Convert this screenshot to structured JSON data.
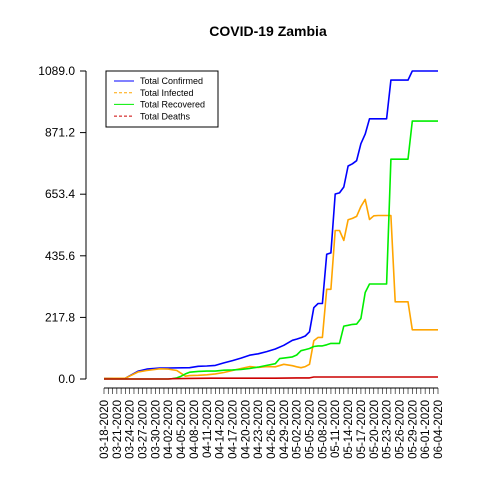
{
  "chart_data": {
    "type": "line",
    "title": "COVID-19 Zambia",
    "xlabel": "",
    "ylabel": "",
    "ylim": [
      0,
      1089
    ],
    "y_ticks": [
      "0.0",
      "217.8",
      "435.6",
      "653.4",
      "871.2",
      "1089.0"
    ],
    "x_tick_labels": [
      "03-18-2020",
      "03-21-2020",
      "03-24-2020",
      "03-27-2020",
      "03-30-2020",
      "04-02-2020",
      "04-05-2020",
      "04-08-2020",
      "04-11-2020",
      "04-14-2020",
      "04-17-2020",
      "04-20-2020",
      "04-23-2020",
      "04-26-2020",
      "04-29-2020",
      "05-02-2020",
      "05-05-2020",
      "05-08-2020",
      "05-11-2020",
      "05-14-2020",
      "05-17-2020",
      "05-20-2020",
      "05-23-2020",
      "05-26-2020",
      "05-29-2020",
      "06-01-2020",
      "06-04-2020"
    ],
    "legend_position": "top-left",
    "grid": false,
    "series": [
      {
        "name": "Total Confirmed",
        "color": "#0000ff",
        "style": "solid",
        "points": [
          [
            0,
            2
          ],
          [
            5,
            3
          ],
          [
            8,
            28
          ],
          [
            10,
            35
          ],
          [
            13,
            39
          ],
          [
            15,
            39
          ],
          [
            20,
            40
          ],
          [
            22,
            45
          ],
          [
            24,
            46
          ],
          [
            26,
            48
          ],
          [
            28,
            57
          ],
          [
            30,
            65
          ],
          [
            32,
            74
          ],
          [
            34,
            84
          ],
          [
            36,
            89
          ],
          [
            38,
            97
          ],
          [
            40,
            106
          ],
          [
            42,
            119
          ],
          [
            44,
            137
          ],
          [
            45,
            141
          ],
          [
            46,
            146
          ],
          [
            47,
            152
          ],
          [
            48,
            167
          ],
          [
            49,
            252
          ],
          [
            50,
            267
          ],
          [
            51,
            267
          ],
          [
            52,
            441
          ],
          [
            53,
            446
          ],
          [
            54,
            654
          ],
          [
            55,
            658
          ],
          [
            56,
            679
          ],
          [
            57,
            753
          ],
          [
            58,
            761
          ],
          [
            59,
            772
          ],
          [
            60,
            832
          ],
          [
            61,
            866
          ],
          [
            62,
            920
          ],
          [
            63,
            920
          ],
          [
            64,
            920
          ],
          [
            65,
            920
          ],
          [
            66,
            920
          ],
          [
            67,
            1057
          ],
          [
            68,
            1057
          ],
          [
            69,
            1057
          ],
          [
            70,
            1057
          ],
          [
            71,
            1057
          ],
          [
            72,
            1089
          ],
          [
            73,
            1089
          ],
          [
            74,
            1089
          ],
          [
            75,
            1089
          ],
          [
            76,
            1089
          ],
          [
            77,
            1089
          ],
          [
            78,
            1089
          ]
        ]
      },
      {
        "name": "Total Infected",
        "color": "#ffa500",
        "style": "solid",
        "points": [
          [
            0,
            2
          ],
          [
            5,
            3
          ],
          [
            8,
            25
          ],
          [
            10,
            30
          ],
          [
            13,
            36
          ],
          [
            15,
            35
          ],
          [
            17,
            30
          ],
          [
            18,
            20
          ],
          [
            19,
            10
          ],
          [
            20,
            12
          ],
          [
            22,
            13
          ],
          [
            24,
            15
          ],
          [
            26,
            18
          ],
          [
            28,
            23
          ],
          [
            30,
            30
          ],
          [
            32,
            37
          ],
          [
            34,
            44
          ],
          [
            36,
            41
          ],
          [
            38,
            44
          ],
          [
            40,
            43
          ],
          [
            42,
            52
          ],
          [
            44,
            47
          ],
          [
            45,
            43
          ],
          [
            46,
            40
          ],
          [
            47,
            44
          ],
          [
            48,
            52
          ],
          [
            49,
            135
          ],
          [
            50,
            147
          ],
          [
            51,
            147
          ],
          [
            52,
            317
          ],
          [
            53,
            317
          ],
          [
            54,
            525
          ],
          [
            55,
            525
          ],
          [
            56,
            490
          ],
          [
            57,
            563
          ],
          [
            58,
            568
          ],
          [
            59,
            575
          ],
          [
            60,
            610
          ],
          [
            61,
            635
          ],
          [
            62,
            564
          ],
          [
            63,
            577
          ],
          [
            64,
            578
          ],
          [
            65,
            578
          ],
          [
            66,
            578
          ],
          [
            67,
            578
          ],
          [
            68,
            273
          ],
          [
            69,
            273
          ],
          [
            70,
            273
          ],
          [
            71,
            273
          ],
          [
            72,
            174
          ],
          [
            73,
            174
          ],
          [
            74,
            174
          ],
          [
            75,
            174
          ],
          [
            76,
            174
          ],
          [
            77,
            174
          ],
          [
            78,
            174
          ]
        ]
      },
      {
        "name": "Total Recovered",
        "color": "#00ee00",
        "style": "solid",
        "points": [
          [
            0,
            0
          ],
          [
            5,
            0
          ],
          [
            10,
            0
          ],
          [
            15,
            0
          ],
          [
            16,
            1
          ],
          [
            17,
            4
          ],
          [
            18,
            10
          ],
          [
            19,
            18
          ],
          [
            20,
            24
          ],
          [
            22,
            27
          ],
          [
            24,
            28
          ],
          [
            26,
            28
          ],
          [
            28,
            31
          ],
          [
            30,
            32
          ],
          [
            32,
            34
          ],
          [
            34,
            37
          ],
          [
            36,
            42
          ],
          [
            38,
            48
          ],
          [
            40,
            54
          ],
          [
            41,
            72
          ],
          [
            42,
            74
          ],
          [
            44,
            78
          ],
          [
            45,
            85
          ],
          [
            46,
            100
          ],
          [
            47,
            104
          ],
          [
            48,
            108
          ],
          [
            49,
            115
          ],
          [
            50,
            117
          ],
          [
            51,
            117
          ],
          [
            52,
            121
          ],
          [
            53,
            126
          ],
          [
            54,
            126
          ],
          [
            55,
            126
          ],
          [
            56,
            187
          ],
          [
            57,
            190
          ],
          [
            58,
            193
          ],
          [
            59,
            194
          ],
          [
            60,
            214
          ],
          [
            61,
            306
          ],
          [
            62,
            336
          ],
          [
            63,
            336
          ],
          [
            64,
            336
          ],
          [
            65,
            336
          ],
          [
            66,
            336
          ],
          [
            67,
            777
          ],
          [
            68,
            777
          ],
          [
            69,
            777
          ],
          [
            70,
            777
          ],
          [
            71,
            777
          ],
          [
            72,
            912
          ],
          [
            73,
            912
          ],
          [
            74,
            912
          ],
          [
            75,
            912
          ],
          [
            76,
            912
          ],
          [
            77,
            912
          ],
          [
            78,
            912
          ]
        ]
      },
      {
        "name": "Total Deaths",
        "color": "#cc0000",
        "style": "solid",
        "points": [
          [
            0,
            0
          ],
          [
            15,
            0
          ],
          [
            16,
            1
          ],
          [
            20,
            2
          ],
          [
            25,
            3
          ],
          [
            30,
            3
          ],
          [
            35,
            3
          ],
          [
            40,
            3
          ],
          [
            45,
            4
          ],
          [
            48,
            4
          ],
          [
            49,
            7
          ],
          [
            55,
            7
          ],
          [
            60,
            7
          ],
          [
            65,
            7
          ],
          [
            70,
            7
          ],
          [
            78,
            7
          ]
        ]
      }
    ],
    "legend": [
      {
        "label": "Total Confirmed",
        "color": "#0000ff",
        "dash": "solid"
      },
      {
        "label": "Total Infected",
        "color": "#ffa500",
        "dash": "dashed"
      },
      {
        "label": "Total Recovered",
        "color": "#00ee00",
        "dash": "solid"
      },
      {
        "label": "Total Deaths",
        "color": "#cc0000",
        "dash": "dashed"
      }
    ]
  }
}
